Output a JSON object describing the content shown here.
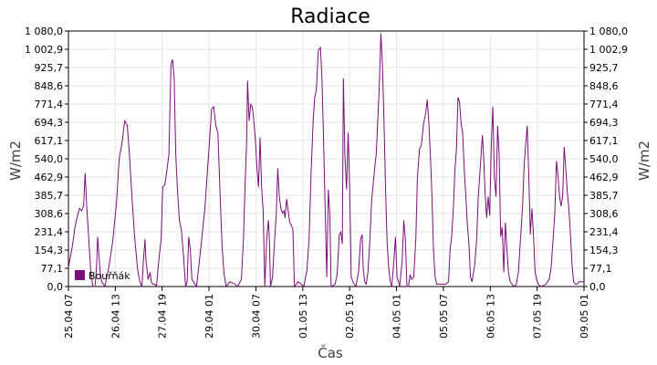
{
  "chart_data": {
    "type": "line",
    "title": "Radiace",
    "xlabel": "Čas",
    "ylabel": "W/m2",
    "ylabel_right": "W/m2",
    "ylim": [
      0,
      1080.0
    ],
    "ytick_labels": [
      "0,0",
      "77,1",
      "154,3",
      "231,4",
      "308,6",
      "385,7",
      "462,9",
      "540,0",
      "617,1",
      "694,3",
      "771,4",
      "848,6",
      "925,7",
      "1 002,9",
      "1 080,0"
    ],
    "xlim": [
      "25.04 07",
      "09.05 07"
    ],
    "xtick_labels": [
      "25.04 07",
      "26.04 13",
      "27.04 19",
      "29.04 01",
      "30.04 07",
      "01.05 13",
      "02.05 19",
      "04.05 01",
      "05.05 07",
      "06.05 13",
      "07.05 19",
      "09.05 01"
    ],
    "grid": true,
    "legend_position": "bottom-left",
    "series": [
      {
        "name": "Bouřňák",
        "color": "#7b0e7b",
        "points": [
          [
            0.0,
            80
          ],
          [
            0.5,
            110
          ],
          [
            1.5,
            170
          ],
          [
            2.5,
            250
          ],
          [
            3.5,
            300
          ],
          [
            4.2,
            330
          ],
          [
            5.0,
            320
          ],
          [
            5.8,
            340
          ],
          [
            6.4,
            480
          ],
          [
            7.0,
            340
          ],
          [
            7.8,
            200
          ],
          [
            8.6,
            60
          ],
          [
            9.4,
            0
          ],
          [
            10.2,
            0
          ],
          [
            10.8,
            80
          ],
          [
            11.2,
            210
          ],
          [
            11.6,
            150
          ],
          [
            12.2,
            60
          ],
          [
            12.8,
            20
          ],
          [
            14.0,
            0
          ],
          [
            15.5,
            80
          ],
          [
            17.0,
            190
          ],
          [
            18.5,
            360
          ],
          [
            19.5,
            540
          ],
          [
            20.6,
            610
          ],
          [
            21.6,
            700
          ],
          [
            22.6,
            680
          ],
          [
            23.4,
            560
          ],
          [
            24.4,
            380
          ],
          [
            25.4,
            210
          ],
          [
            26.6,
            70
          ],
          [
            27.4,
            20
          ],
          [
            28.2,
            0
          ],
          [
            28.8,
            110
          ],
          [
            29.4,
            200
          ],
          [
            29.8,
            110
          ],
          [
            30.6,
            30
          ],
          [
            31.4,
            60
          ],
          [
            31.8,
            20
          ],
          [
            32.4,
            10
          ],
          [
            33.2,
            10
          ],
          [
            33.8,
            0
          ],
          [
            34.8,
            120
          ],
          [
            35.6,
            200
          ],
          [
            36.2,
            420
          ],
          [
            37.0,
            430
          ],
          [
            37.8,
            490
          ],
          [
            38.6,
            560
          ],
          [
            39.4,
            940
          ],
          [
            40.0,
            960
          ],
          [
            40.6,
            880
          ],
          [
            41.2,
            560
          ],
          [
            41.8,
            420
          ],
          [
            42.6,
            280
          ],
          [
            43.4,
            240
          ],
          [
            44.2,
            130
          ],
          [
            45.0,
            0
          ],
          [
            45.6,
            20
          ],
          [
            46.2,
            210
          ],
          [
            46.8,
            160
          ],
          [
            47.4,
            30
          ],
          [
            48.0,
            20
          ],
          [
            48.6,
            10
          ],
          [
            49.2,
            0
          ],
          [
            50.0,
            80
          ],
          [
            51.2,
            200
          ],
          [
            52.4,
            330
          ],
          [
            53.6,
            520
          ],
          [
            54.4,
            650
          ],
          [
            55.0,
            750
          ],
          [
            55.8,
            760
          ],
          [
            56.6,
            680
          ],
          [
            57.4,
            650
          ],
          [
            58.2,
            400
          ],
          [
            59.0,
            170
          ],
          [
            59.8,
            50
          ],
          [
            60.6,
            0
          ],
          [
            62.0,
            20
          ],
          [
            64.0,
            10
          ],
          [
            65.0,
            0
          ],
          [
            66.4,
            30
          ],
          [
            67.2,
            200
          ],
          [
            67.8,
            420
          ],
          [
            68.4,
            600
          ],
          [
            68.8,
            870
          ],
          [
            69.4,
            700
          ],
          [
            70.0,
            770
          ],
          [
            70.6,
            760
          ],
          [
            71.2,
            700
          ],
          [
            71.8,
            620
          ],
          [
            72.4,
            500
          ],
          [
            73.0,
            420
          ],
          [
            73.6,
            630
          ],
          [
            74.2,
            420
          ],
          [
            74.8,
            320
          ],
          [
            75.4,
            0
          ],
          [
            76.2,
            210
          ],
          [
            76.8,
            280
          ],
          [
            77.2,
            190
          ],
          [
            77.6,
            0
          ],
          [
            78.4,
            40
          ],
          [
            79.2,
            200
          ],
          [
            79.8,
            300
          ],
          [
            80.4,
            500
          ],
          [
            81.0,
            380
          ],
          [
            81.6,
            330
          ],
          [
            82.2,
            310
          ],
          [
            82.8,
            320
          ],
          [
            83.2,
            290
          ],
          [
            83.8,
            370
          ],
          [
            84.4,
            320
          ],
          [
            85.0,
            270
          ],
          [
            85.6,
            260
          ],
          [
            86.2,
            240
          ],
          [
            86.8,
            0
          ],
          [
            88.2,
            20
          ],
          [
            89.4,
            10
          ],
          [
            90.4,
            0
          ],
          [
            91.6,
            70
          ],
          [
            92.4,
            200
          ],
          [
            93.2,
            480
          ],
          [
            94.0,
            700
          ],
          [
            94.6,
            800
          ],
          [
            95.2,
            830
          ],
          [
            96.0,
            1000
          ],
          [
            96.8,
            1010
          ],
          [
            97.4,
            870
          ],
          [
            98.0,
            620
          ],
          [
            98.6,
            320
          ],
          [
            99.2,
            40
          ],
          [
            99.8,
            410
          ],
          [
            100.4,
            300
          ],
          [
            100.9,
            0
          ],
          [
            102.4,
            10
          ],
          [
            103.2,
            50
          ],
          [
            104.0,
            220
          ],
          [
            104.6,
            230
          ],
          [
            105.2,
            180
          ],
          [
            105.6,
            880
          ],
          [
            106.2,
            550
          ],
          [
            106.8,
            410
          ],
          [
            107.4,
            650
          ],
          [
            108.0,
            420
          ],
          [
            108.6,
            40
          ],
          [
            109.2,
            20
          ],
          [
            109.8,
            10
          ],
          [
            110.4,
            0
          ],
          [
            111.4,
            60
          ],
          [
            112.2,
            200
          ],
          [
            112.8,
            220
          ],
          [
            113.2,
            80
          ],
          [
            113.8,
            20
          ],
          [
            114.4,
            10
          ],
          [
            115.0,
            60
          ],
          [
            115.8,
            200
          ],
          [
            116.4,
            360
          ],
          [
            117.0,
            430
          ],
          [
            117.6,
            500
          ],
          [
            118.2,
            560
          ],
          [
            118.8,
            700
          ],
          [
            119.4,
            850
          ],
          [
            120.0,
            1070
          ],
          [
            120.6,
            940
          ],
          [
            121.2,
            700
          ],
          [
            121.8,
            400
          ],
          [
            122.4,
            180
          ],
          [
            123.0,
            80
          ],
          [
            123.6,
            20
          ],
          [
            124.2,
            0
          ],
          [
            125.0,
            110
          ],
          [
            125.6,
            210
          ],
          [
            126.2,
            40
          ],
          [
            126.8,
            20
          ],
          [
            127.2,
            0
          ],
          [
            128.2,
            110
          ],
          [
            128.8,
            280
          ],
          [
            129.4,
            200
          ],
          [
            130.0,
            0
          ],
          [
            130.6,
            0
          ],
          [
            131.2,
            50
          ],
          [
            131.8,
            30
          ],
          [
            132.6,
            40
          ],
          [
            133.4,
            200
          ],
          [
            134.0,
            460
          ],
          [
            134.8,
            580
          ],
          [
            135.6,
            600
          ],
          [
            136.4,
            690
          ],
          [
            137.2,
            730
          ],
          [
            137.8,
            790
          ],
          [
            138.4,
            700
          ],
          [
            139.0,
            560
          ],
          [
            139.6,
            380
          ],
          [
            140.2,
            150
          ],
          [
            140.8,
            40
          ],
          [
            141.4,
            10
          ],
          [
            143.0,
            10
          ],
          [
            145.0,
            10
          ],
          [
            146.0,
            20
          ],
          [
            146.6,
            160
          ],
          [
            147.2,
            210
          ],
          [
            147.8,
            330
          ],
          [
            148.4,
            490
          ],
          [
            149.0,
            580
          ],
          [
            149.6,
            800
          ],
          [
            150.2,
            780
          ],
          [
            150.8,
            690
          ],
          [
            151.4,
            650
          ],
          [
            152.0,
            500
          ],
          [
            152.6,
            390
          ],
          [
            153.2,
            260
          ],
          [
            153.8,
            180
          ],
          [
            154.4,
            40
          ],
          [
            155.0,
            20
          ],
          [
            156.0,
            90
          ],
          [
            156.8,
            200
          ],
          [
            157.4,
            380
          ],
          [
            158.0,
            480
          ],
          [
            158.6,
            580
          ],
          [
            159.0,
            640
          ],
          [
            159.4,
            560
          ],
          [
            160.0,
            400
          ],
          [
            160.6,
            290
          ],
          [
            161.2,
            380
          ],
          [
            161.8,
            300
          ],
          [
            162.4,
            600
          ],
          [
            163.0,
            760
          ],
          [
            163.6,
            460
          ],
          [
            164.2,
            380
          ],
          [
            164.8,
            680
          ],
          [
            165.4,
            560
          ],
          [
            166.0,
            210
          ],
          [
            166.6,
            250
          ],
          [
            167.2,
            60
          ],
          [
            167.8,
            270
          ],
          [
            168.4,
            160
          ],
          [
            169.0,
            60
          ],
          [
            169.6,
            20
          ],
          [
            170.4,
            10
          ],
          [
            171.2,
            0
          ],
          [
            172.0,
            10
          ],
          [
            172.8,
            60
          ],
          [
            173.6,
            200
          ],
          [
            174.4,
            340
          ],
          [
            175.0,
            510
          ],
          [
            175.6,
            600
          ],
          [
            176.2,
            680
          ],
          [
            176.8,
            470
          ],
          [
            177.4,
            220
          ],
          [
            178.0,
            330
          ],
          [
            178.6,
            220
          ],
          [
            179.2,
            60
          ],
          [
            179.8,
            30
          ],
          [
            180.4,
            10
          ],
          [
            181.6,
            0
          ],
          [
            183.4,
            10
          ],
          [
            184.6,
            30
          ],
          [
            185.4,
            80
          ],
          [
            186.2,
            210
          ],
          [
            186.8,
            310
          ],
          [
            187.4,
            530
          ],
          [
            188.0,
            470
          ],
          [
            188.6,
            380
          ],
          [
            189.2,
            340
          ],
          [
            189.8,
            380
          ],
          [
            190.4,
            590
          ],
          [
            191.0,
            500
          ],
          [
            191.6,
            400
          ],
          [
            192.2,
            330
          ],
          [
            192.8,
            220
          ],
          [
            193.4,
            90
          ],
          [
            194.0,
            20
          ],
          [
            194.6,
            10
          ],
          [
            195.4,
            10
          ],
          [
            196.0,
            20
          ],
          [
            196.6,
            20
          ],
          [
            197.2,
            20
          ],
          [
            198.0,
            20
          ]
        ]
      }
    ]
  }
}
